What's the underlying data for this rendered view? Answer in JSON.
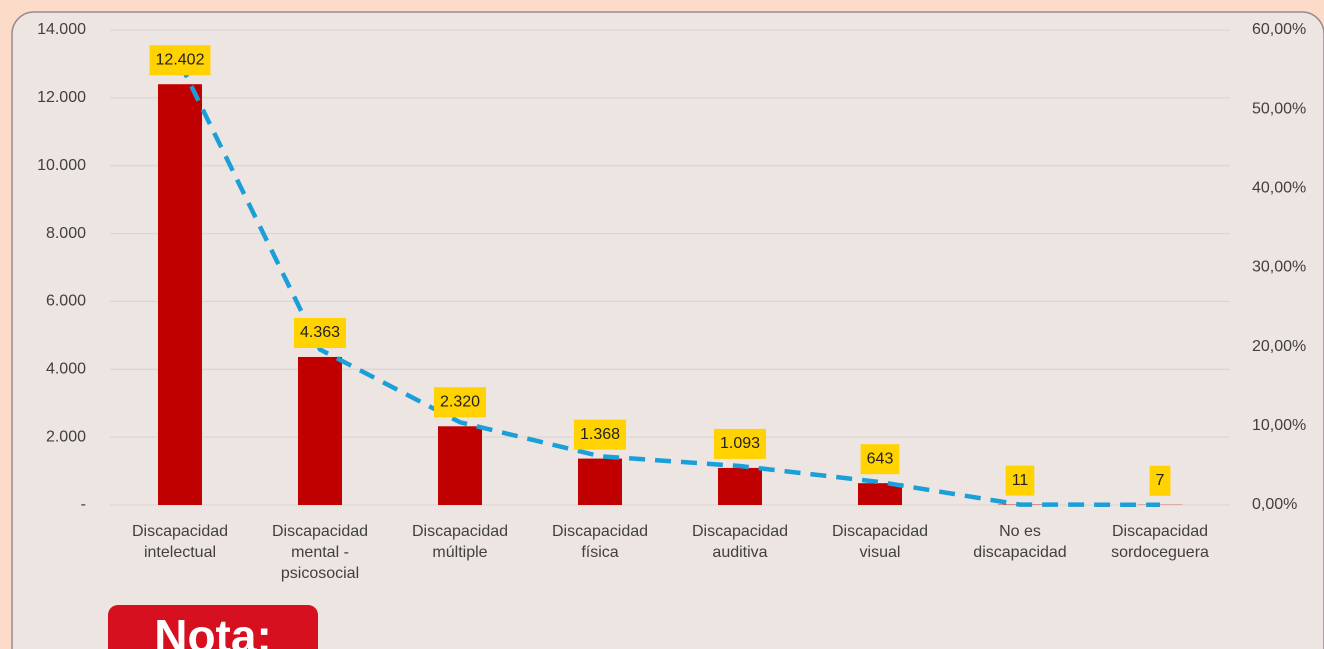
{
  "chart_data": {
    "type": "bar",
    "categories": [
      "Discapacidad\nintelectual",
      "Discapacidad\nmental -\npsicosocial",
      "Discapacidad\nmúltiple",
      "Discapacidad\nfísica",
      "Discapacidad\nauditiva",
      "Discapacidad\nvisual",
      "No es\ndiscapacidad",
      "Discapacidad\nsordoceguera"
    ],
    "series": [
      {
        "type": "bar",
        "color": "#c00000",
        "values": [
          12402,
          4363,
          2320,
          1368,
          1093,
          643,
          11,
          7
        ],
        "value_labels": [
          "12.402",
          "4.363",
          "2.320",
          "1.368",
          "1.093",
          "643",
          "11",
          "7"
        ]
      },
      {
        "type": "line",
        "axis": "y2",
        "color": "#1a9fd9",
        "dashed": true,
        "values": [
          55.85,
          19.65,
          10.45,
          6.16,
          4.92,
          2.9,
          0.05,
          0.03
        ]
      }
    ],
    "ylim": [
      0,
      14000
    ],
    "yticks": [
      {
        "value": 0,
        "label": "-"
      },
      {
        "value": 2000,
        "label": "2.000"
      },
      {
        "value": 4000,
        "label": "4.000"
      },
      {
        "value": 6000,
        "label": "6.000"
      },
      {
        "value": 8000,
        "label": "8.000"
      },
      {
        "value": 10000,
        "label": "10.000"
      },
      {
        "value": 12000,
        "label": "12.000"
      },
      {
        "value": 14000,
        "label": "14.000"
      }
    ],
    "y2lim": [
      0,
      60
    ],
    "y2ticks": [
      {
        "value": 0,
        "label": "0,00%"
      },
      {
        "value": 10,
        "label": "10,00%"
      },
      {
        "value": 20,
        "label": "20,00%"
      },
      {
        "value": 30,
        "label": "30,00%"
      },
      {
        "value": 40,
        "label": "40,00%"
      },
      {
        "value": 50,
        "label": "50,00%"
      },
      {
        "value": 60,
        "label": "60,00%"
      }
    ],
    "grid": true,
    "annotation": "Nota:"
  }
}
